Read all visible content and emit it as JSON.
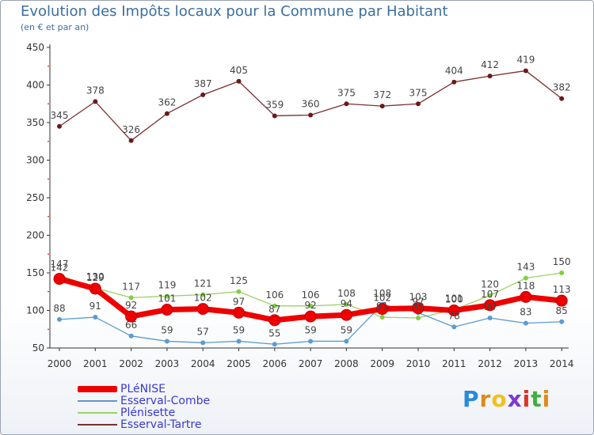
{
  "header": {
    "title": "Evolution des Impôts locaux pour la Commune par Habitant",
    "subtitle": "(en € et par an)"
  },
  "logo": {
    "letters": [
      "P",
      "r",
      "o",
      "x",
      "i",
      "t",
      "i"
    ],
    "colors": [
      "#2a8ad8",
      "#e08a1a",
      "#f0c020",
      "#7a3ad0",
      "#e0302a",
      "#40b040",
      "#e08a1a"
    ]
  },
  "chart_data": {
    "type": "line",
    "title": "Evolution des Impôts locaux pour la Commune par Habitant",
    "subtitle": "(en € et par an)",
    "xlabel": "",
    "ylabel": "",
    "x": [
      "2000",
      "2001",
      "2002",
      "2003",
      "2004",
      "2005",
      "2006",
      "2007",
      "2008",
      "2009",
      "2010",
      "2011",
      "2012",
      "2013",
      "2014"
    ],
    "ylim": [
      50,
      450
    ],
    "yticks": [
      50,
      100,
      150,
      200,
      250,
      300,
      350,
      400,
      450
    ],
    "grid": false,
    "legend_position": "bottom-left",
    "series": [
      {
        "name": "PLéNISE",
        "color": "#ee0000",
        "marker": "#ee0000",
        "values": [
          142,
          129,
          92,
          101,
          102,
          97,
          87,
          92,
          94,
          102,
          103,
          100,
          107,
          118,
          113
        ],
        "labels": [
          "142",
          "129",
          "92",
          "101",
          "102",
          "97",
          "87",
          "92",
          "94",
          "102",
          "103",
          "100",
          "107",
          "118",
          "113"
        ]
      },
      {
        "name": "Esserval-Combe",
        "color": "#5b9bd0",
        "marker": "#5b9bd0",
        "values": [
          88,
          91,
          66,
          59,
          57,
          59,
          55,
          59,
          59,
          108,
          97,
          78,
          90,
          83,
          85
        ],
        "labels": [
          "88",
          "91",
          "66",
          "59",
          "57",
          "59",
          "55",
          "59",
          "59",
          "108",
          "97",
          "78",
          "90",
          "83",
          "85"
        ]
      },
      {
        "name": "Plénisette",
        "color": "#9ad264",
        "marker": "#7ed040",
        "values": [
          147,
          130,
          117,
          119,
          121,
          125,
          106,
          106,
          108,
          91,
          90,
          101,
          120,
          143,
          150
        ],
        "labels": [
          "147",
          "130",
          "117",
          "119",
          "121",
          "125",
          "106",
          "106",
          "108",
          "91",
          "90",
          "101",
          "120",
          "143",
          "150"
        ]
      },
      {
        "name": "Esserval-Tartre",
        "color": "#7a3030",
        "marker": "#6a1a1a",
        "values": [
          345,
          378,
          326,
          362,
          387,
          405,
          359,
          360,
          375,
          372,
          375,
          404,
          412,
          419,
          382
        ],
        "labels": [
          "345",
          "378",
          "326",
          "362",
          "387",
          "405",
          "359",
          "360",
          "375",
          "372",
          "375",
          "404",
          "412",
          "419",
          "382"
        ]
      }
    ]
  }
}
